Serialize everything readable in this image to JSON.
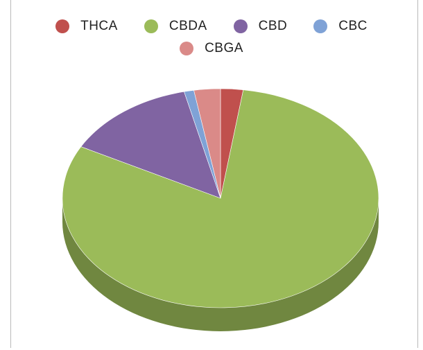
{
  "chart_data": {
    "type": "pie",
    "title": "",
    "legend_position": "top",
    "three_d": true,
    "slices": [
      {
        "label": "THCA",
        "value": 2.3,
        "color": "#c0504d"
      },
      {
        "label": "CBDA",
        "value": 80.5,
        "color": "#9bbb59"
      },
      {
        "label": "CBD",
        "value": 13.5,
        "color": "#8064a2"
      },
      {
        "label": "CBC",
        "value": 1.0,
        "color": "#7fa2d6"
      },
      {
        "label": "CBGA",
        "value": 2.7,
        "color": "#da8a88"
      }
    ]
  }
}
